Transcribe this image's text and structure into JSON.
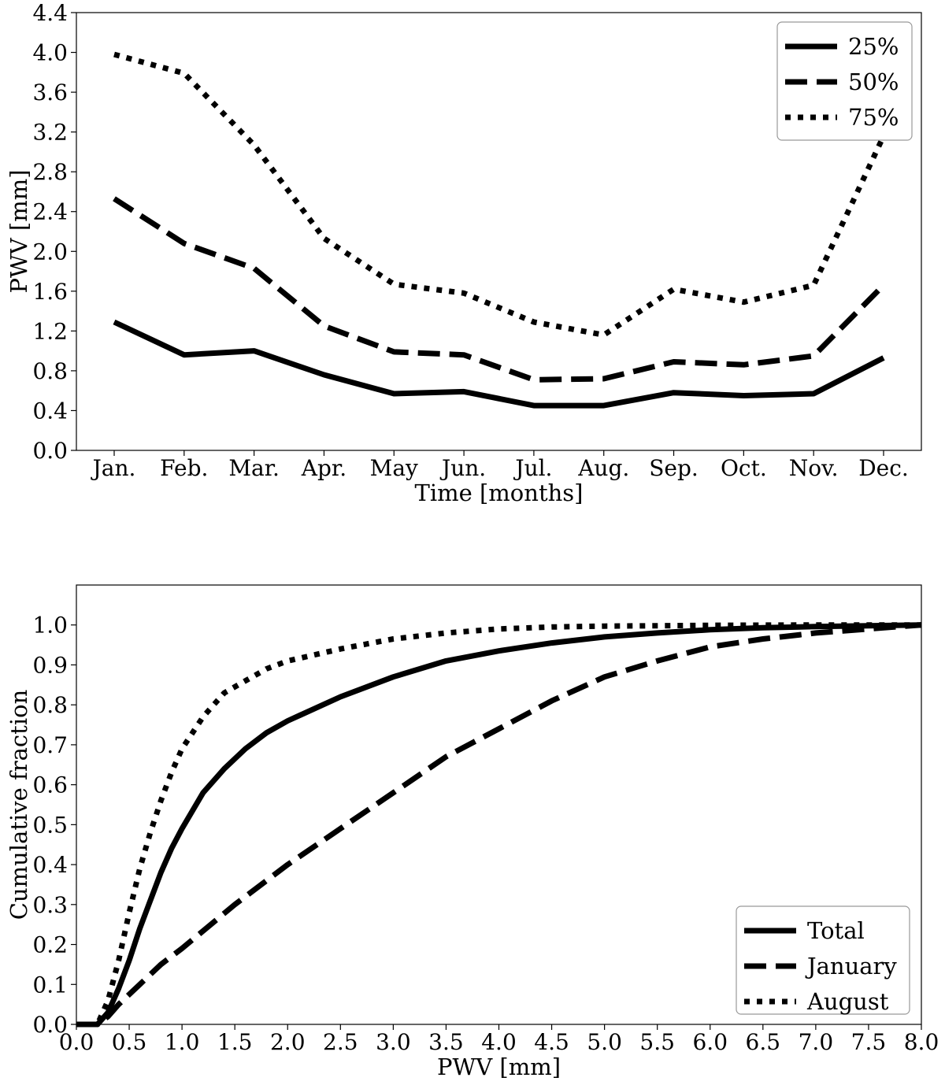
{
  "chart_data": [
    {
      "type": "line",
      "xlabel": "Time [months]",
      "ylabel": "PWV [mm]",
      "categories": [
        "Jan.",
        "Feb.",
        "Mar.",
        "Apr.",
        "May",
        "Jun.",
        "Jul.",
        "Aug.",
        "Sep.",
        "Oct.",
        "Nov.",
        "Dec."
      ],
      "ylim": [
        0.0,
        4.4
      ],
      "yticks": [
        "0.0",
        "0.4",
        "0.8",
        "1.2",
        "1.6",
        "2.0",
        "2.4",
        "2.8",
        "3.2",
        "3.6",
        "4.0",
        "4.4"
      ],
      "legend_position": "top-right",
      "grid": false,
      "series": [
        {
          "name": "25%",
          "style": "solid",
          "values": [
            1.29,
            0.96,
            1.0,
            0.76,
            0.57,
            0.59,
            0.45,
            0.45,
            0.58,
            0.55,
            0.57,
            0.93
          ]
        },
        {
          "name": "50%",
          "style": "dashed",
          "values": [
            2.53,
            2.08,
            1.83,
            1.25,
            0.99,
            0.96,
            0.71,
            0.72,
            0.89,
            0.86,
            0.95,
            1.66
          ]
        },
        {
          "name": "75%",
          "style": "dotted",
          "values": [
            3.98,
            3.79,
            3.07,
            2.13,
            1.67,
            1.58,
            1.29,
            1.16,
            1.62,
            1.49,
            1.66,
            3.16
          ]
        }
      ]
    },
    {
      "type": "line",
      "xlabel": "PWV [mm]",
      "ylabel": "Cumulative fraction",
      "xlim": [
        0.0,
        8.0
      ],
      "ylim": [
        0.0,
        1.1
      ],
      "xticks": [
        "0.0",
        "0.5",
        "1.0",
        "1.5",
        "2.0",
        "2.5",
        "3.0",
        "3.5",
        "4.0",
        "4.5",
        "5.0",
        "5.5",
        "6.0",
        "6.5",
        "7.0",
        "7.5",
        "8.0"
      ],
      "yticks": [
        "0.0",
        "0.1",
        "0.2",
        "0.3",
        "0.4",
        "0.5",
        "0.6",
        "0.7",
        "0.8",
        "0.9",
        "1.0"
      ],
      "legend_position": "bottom-right",
      "grid": false,
      "series": [
        {
          "name": "Total",
          "style": "solid",
          "x": [
            0.0,
            0.2,
            0.3,
            0.4,
            0.5,
            0.6,
            0.7,
            0.8,
            0.9,
            1.0,
            1.2,
            1.4,
            1.6,
            1.8,
            2.0,
            2.5,
            3.0,
            3.5,
            4.0,
            4.5,
            5.0,
            5.5,
            6.0,
            6.5,
            7.0,
            7.5,
            8.0
          ],
          "y": [
            0.0,
            0.0,
            0.03,
            0.09,
            0.16,
            0.24,
            0.31,
            0.38,
            0.44,
            0.49,
            0.58,
            0.64,
            0.69,
            0.73,
            0.76,
            0.82,
            0.87,
            0.91,
            0.935,
            0.955,
            0.97,
            0.98,
            0.988,
            0.993,
            0.996,
            0.998,
            1.0
          ]
        },
        {
          "name": "January",
          "style": "dashed",
          "x": [
            0.0,
            0.2,
            0.3,
            0.4,
            0.6,
            0.8,
            1.0,
            1.5,
            2.0,
            2.5,
            3.0,
            3.5,
            4.0,
            4.5,
            5.0,
            5.5,
            6.0,
            6.5,
            7.0,
            7.5,
            8.0
          ],
          "y": [
            0.0,
            0.0,
            0.02,
            0.05,
            0.1,
            0.15,
            0.19,
            0.3,
            0.4,
            0.49,
            0.58,
            0.67,
            0.74,
            0.81,
            0.87,
            0.91,
            0.945,
            0.965,
            0.98,
            0.99,
            1.0
          ]
        },
        {
          "name": "August",
          "style": "dotted",
          "x": [
            0.0,
            0.2,
            0.3,
            0.4,
            0.5,
            0.6,
            0.7,
            0.8,
            0.9,
            1.0,
            1.2,
            1.4,
            1.6,
            1.8,
            2.0,
            2.5,
            3.0,
            3.5,
            4.0,
            4.5,
            5.0,
            6.0,
            7.0,
            8.0
          ],
          "y": [
            0.0,
            0.0,
            0.06,
            0.16,
            0.28,
            0.39,
            0.48,
            0.56,
            0.63,
            0.69,
            0.77,
            0.83,
            0.86,
            0.89,
            0.91,
            0.94,
            0.965,
            0.98,
            0.99,
            0.995,
            0.997,
            0.999,
            1.0,
            1.0
          ]
        }
      ]
    }
  ]
}
